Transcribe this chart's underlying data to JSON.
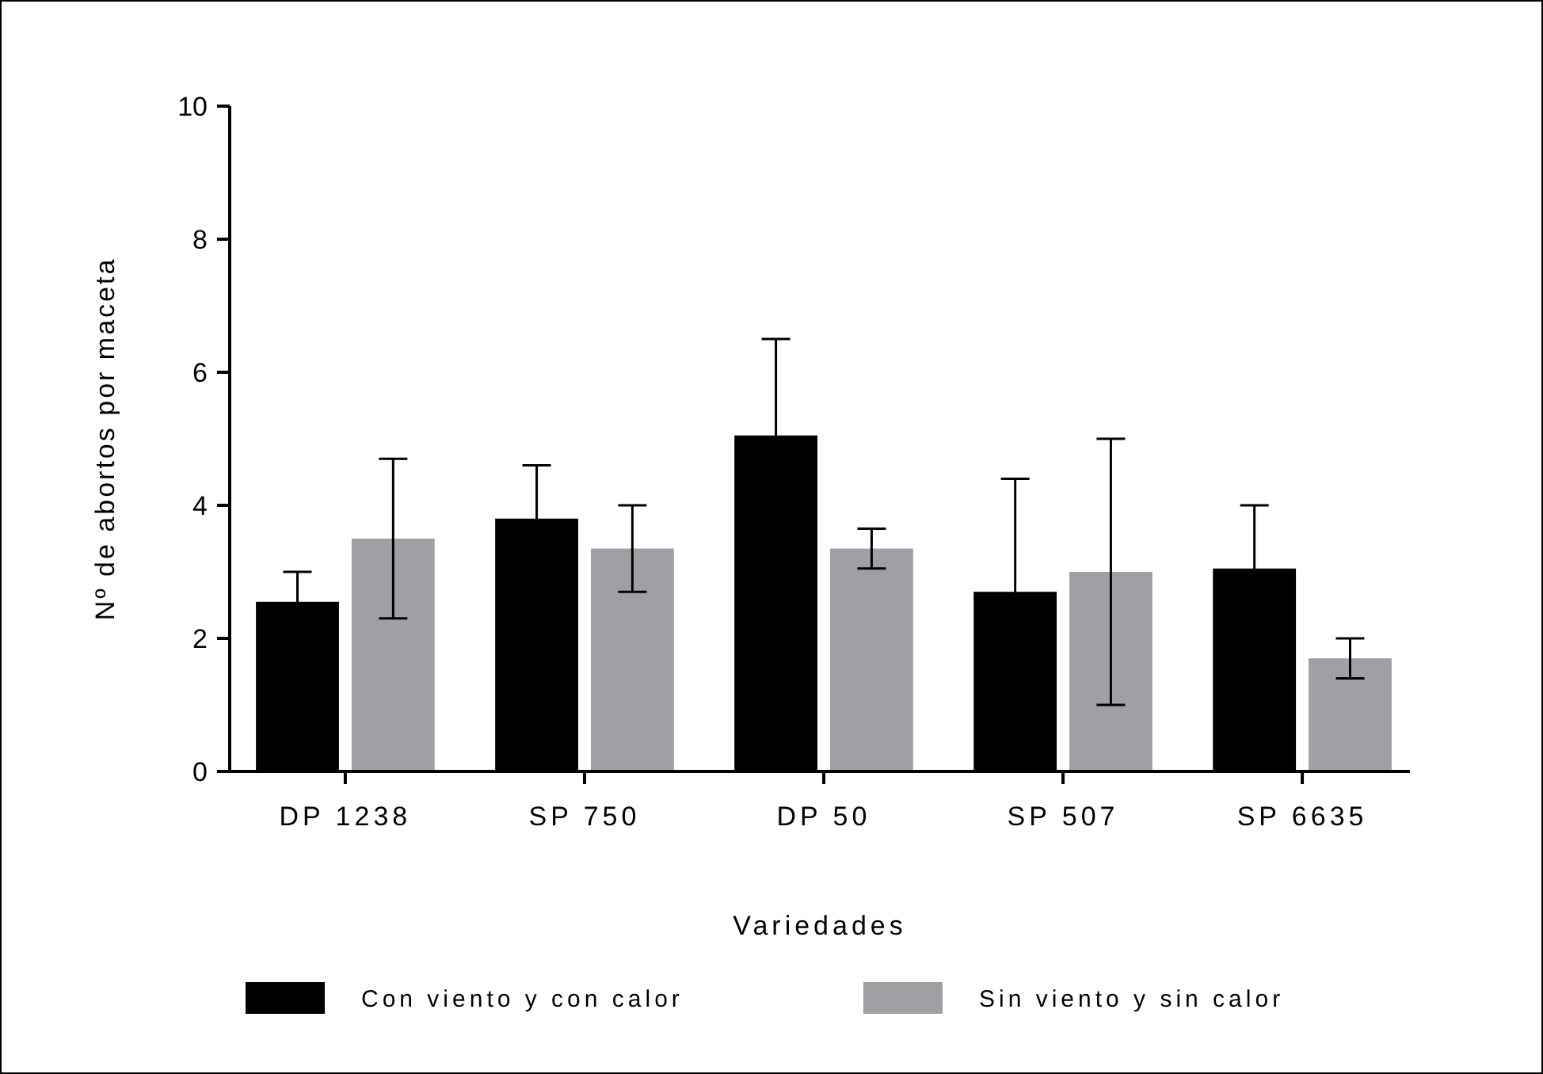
{
  "chart_data": {
    "type": "bar",
    "xlabel": "Variedades",
    "ylabel": "Nº de abortos por maceta",
    "categories": [
      "DP 1238",
      "SP 750",
      "DP 50",
      "SP 507",
      "SP 6635"
    ],
    "series": [
      {
        "name": "Con viento y con calor",
        "color": "#000000",
        "values": [
          2.55,
          3.8,
          5.05,
          2.7,
          3.05
        ],
        "errors": [
          0.45,
          0.8,
          1.45,
          1.7,
          0.95
        ]
      },
      {
        "name": "Sin viento y sin calor",
        "color": "#a0a0a4",
        "values": [
          3.5,
          3.35,
          3.35,
          3.0,
          1.7
        ],
        "errors": [
          1.2,
          0.65,
          0.3,
          2.0,
          0.3
        ]
      }
    ],
    "ylim": [
      0,
      10
    ],
    "yticks": [
      0,
      2,
      4,
      6,
      8,
      10
    ],
    "grid": false,
    "legend": "bottom"
  }
}
